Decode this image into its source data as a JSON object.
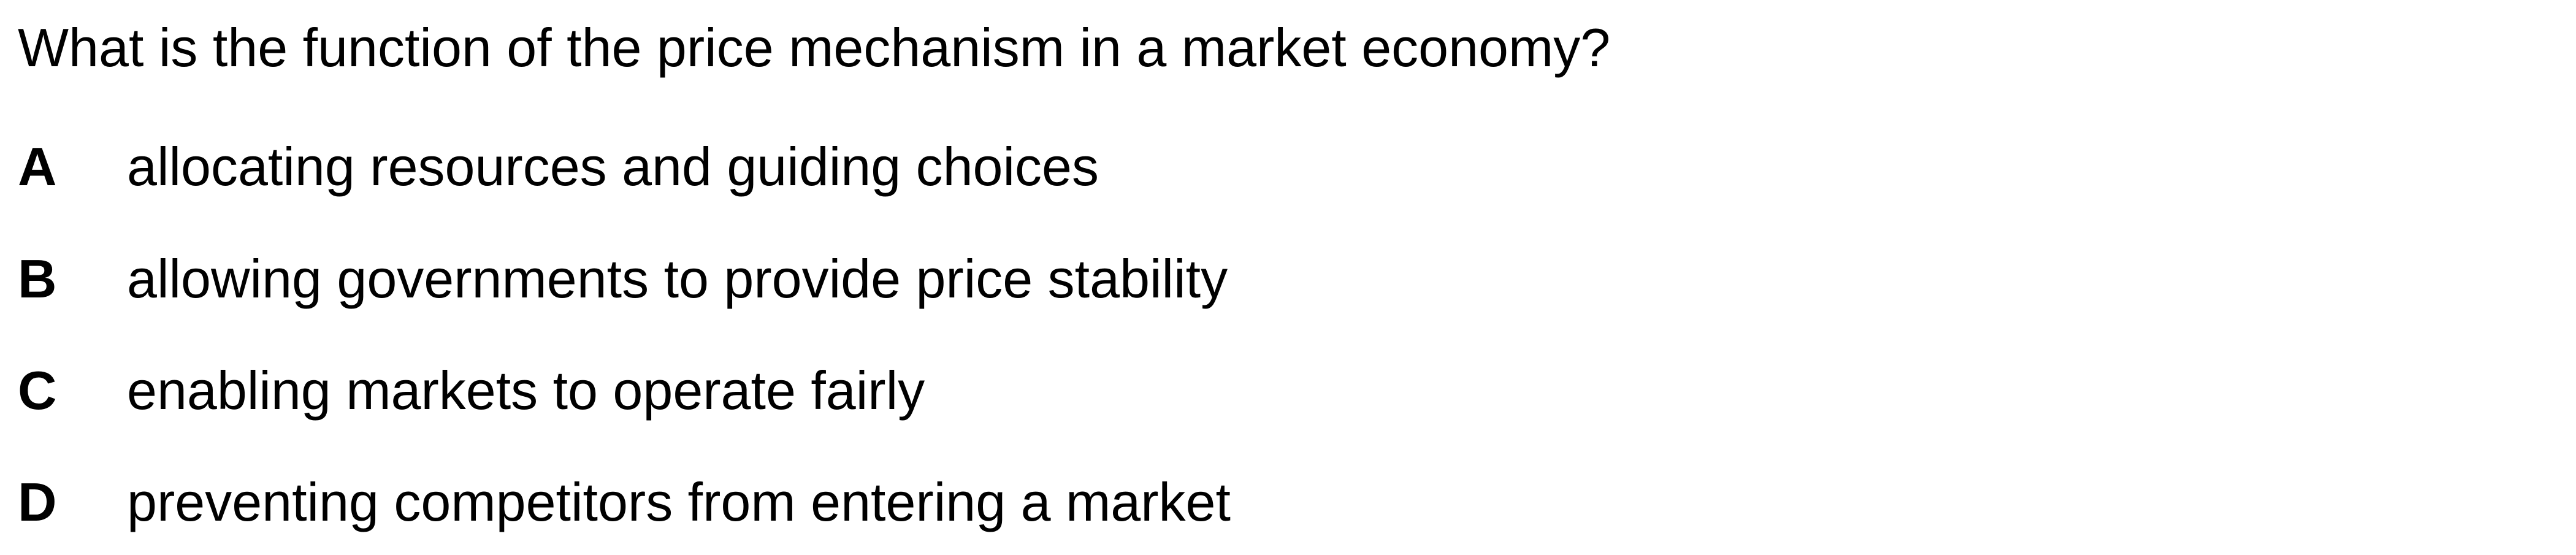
{
  "question": {
    "text": "What is the function of the price mechanism in a market economy?"
  },
  "options": [
    {
      "letter": "A",
      "text": "allocating resources and guiding choices"
    },
    {
      "letter": "B",
      "text": "allowing governments to provide price stability"
    },
    {
      "letter": "C",
      "text": "enabling markets to operate fairly"
    },
    {
      "letter": "D",
      "text": "preventing competitors from entering a market"
    }
  ]
}
